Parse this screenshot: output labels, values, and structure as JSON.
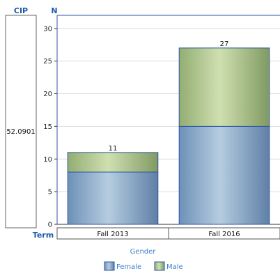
{
  "header": {
    "cip_label": "CIP",
    "y_axis_header": "N",
    "term_label": "Term"
  },
  "cip_value": "52.0901",
  "chart_data": {
    "type": "bar",
    "stacked": true,
    "categories": [
      "Fall 2013",
      "Fall 2016"
    ],
    "series": [
      {
        "name": "Female",
        "values": [
          8,
          15
        ]
      },
      {
        "name": "Male",
        "values": [
          3,
          12
        ]
      }
    ],
    "totals": [
      11,
      27
    ],
    "xlabel": "Term",
    "ylabel": "N",
    "ylim": [
      0,
      32
    ],
    "yticks": [
      0,
      5,
      10,
      15,
      20,
      25,
      30
    ],
    "grid": true,
    "legend": {
      "title": "Gender",
      "position": "bottom-center"
    },
    "colors": {
      "Female": "#8fb0d0",
      "Male": "#b3c98e",
      "border": "#2a56a0",
      "grid": "#dcdcdc"
    }
  }
}
